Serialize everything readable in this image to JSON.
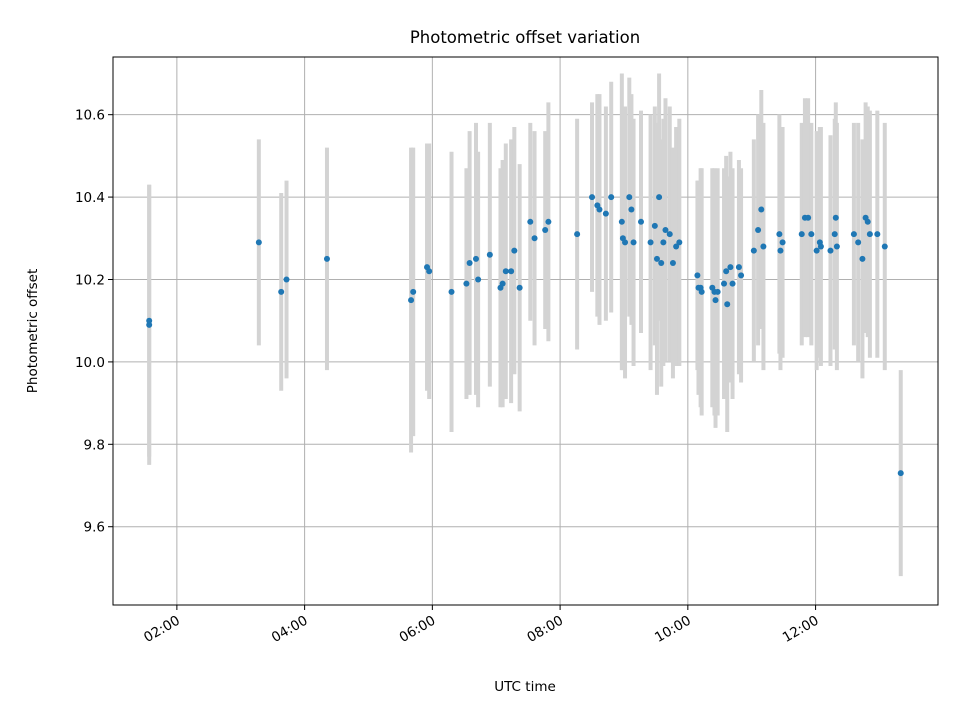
{
  "chart_data": {
    "type": "scatter",
    "title": "Photometric offset variation",
    "xlabel": "UTC time",
    "ylabel": "Photometric offset",
    "x_axis_type": "time",
    "xlim": [
      "01:00",
      "13:55"
    ],
    "ylim": [
      9.41,
      10.74
    ],
    "grid": true,
    "xticks": [
      "02:00",
      "04:00",
      "06:00",
      "08:00",
      "10:00",
      "12:00"
    ],
    "yticks": [
      "9.6",
      "9.8",
      "10.0",
      "10.2",
      "10.4",
      "10.6"
    ],
    "marker_color": "#1f77b4",
    "errorbar_color": "#d3d3d3",
    "series": [
      {
        "points": [
          {
            "x": "01:34",
            "y": 10.09,
            "err": 0.34
          },
          {
            "x": "01:34",
            "y": 10.1,
            "err": 0.33
          },
          {
            "x": "03:17",
            "y": 10.29,
            "err": 0.25
          },
          {
            "x": "03:38",
            "y": 10.17,
            "err": 0.24
          },
          {
            "x": "03:43",
            "y": 10.2,
            "err": 0.24
          },
          {
            "x": "04:21",
            "y": 10.25,
            "err": 0.27
          },
          {
            "x": "05:40",
            "y": 10.15,
            "err": 0.37
          },
          {
            "x": "05:42",
            "y": 10.17,
            "err": 0.35
          },
          {
            "x": "05:55",
            "y": 10.23,
            "err": 0.3
          },
          {
            "x": "05:57",
            "y": 10.22,
            "err": 0.31
          },
          {
            "x": "06:18",
            "y": 10.17,
            "err": 0.34
          },
          {
            "x": "06:32",
            "y": 10.19,
            "err": 0.28
          },
          {
            "x": "06:35",
            "y": 10.24,
            "err": 0.32
          },
          {
            "x": "06:41",
            "y": 10.25,
            "err": 0.33
          },
          {
            "x": "06:43",
            "y": 10.2,
            "err": 0.31
          },
          {
            "x": "06:54",
            "y": 10.26,
            "err": 0.32
          },
          {
            "x": "07:04",
            "y": 10.18,
            "err": 0.29
          },
          {
            "x": "07:06",
            "y": 10.19,
            "err": 0.3
          },
          {
            "x": "07:09",
            "y": 10.22,
            "err": 0.31
          },
          {
            "x": "07:14",
            "y": 10.22,
            "err": 0.32
          },
          {
            "x": "07:17",
            "y": 10.27,
            "err": 0.3
          },
          {
            "x": "07:22",
            "y": 10.18,
            "err": 0.3
          },
          {
            "x": "07:32",
            "y": 10.34,
            "err": 0.24
          },
          {
            "x": "07:36",
            "y": 10.3,
            "err": 0.26
          },
          {
            "x": "07:46",
            "y": 10.32,
            "err": 0.24
          },
          {
            "x": "07:49",
            "y": 10.34,
            "err": 0.29
          },
          {
            "x": "08:16",
            "y": 10.31,
            "err": 0.28
          },
          {
            "x": "08:30",
            "y": 10.4,
            "err": 0.23
          },
          {
            "x": "08:35",
            "y": 10.38,
            "err": 0.27
          },
          {
            "x": "08:37",
            "y": 10.37,
            "err": 0.28
          },
          {
            "x": "08:43",
            "y": 10.36,
            "err": 0.26
          },
          {
            "x": "08:48",
            "y": 10.4,
            "err": 0.28
          },
          {
            "x": "08:58",
            "y": 10.34,
            "err": 0.36
          },
          {
            "x": "08:59",
            "y": 10.3,
            "err": 0.32
          },
          {
            "x": "09:01",
            "y": 10.29,
            "err": 0.33
          },
          {
            "x": "09:05",
            "y": 10.4,
            "err": 0.29
          },
          {
            "x": "09:07",
            "y": 10.37,
            "err": 0.28
          },
          {
            "x": "09:09",
            "y": 10.29,
            "err": 0.3
          },
          {
            "x": "09:16",
            "y": 10.34,
            "err": 0.27
          },
          {
            "x": "09:25",
            "y": 10.29,
            "err": 0.31
          },
          {
            "x": "09:29",
            "y": 10.33,
            "err": 0.29
          },
          {
            "x": "09:31",
            "y": 10.25,
            "err": 0.33
          },
          {
            "x": "09:33",
            "y": 10.4,
            "err": 0.3
          },
          {
            "x": "09:35",
            "y": 10.24,
            "err": 0.3
          },
          {
            "x": "09:37",
            "y": 10.29,
            "err": 0.3
          },
          {
            "x": "09:39",
            "y": 10.32,
            "err": 0.32
          },
          {
            "x": "09:43",
            "y": 10.31,
            "err": 0.31
          },
          {
            "x": "09:46",
            "y": 10.24,
            "err": 0.28
          },
          {
            "x": "09:49",
            "y": 10.28,
            "err": 0.29
          },
          {
            "x": "09:52",
            "y": 10.29,
            "err": 0.3
          },
          {
            "x": "10:09",
            "y": 10.21,
            "err": 0.23
          },
          {
            "x": "10:10",
            "y": 10.18,
            "err": 0.26
          },
          {
            "x": "10:12",
            "y": 10.18,
            "err": 0.29
          },
          {
            "x": "10:13",
            "y": 10.17,
            "err": 0.3
          },
          {
            "x": "10:23",
            "y": 10.18,
            "err": 0.29
          },
          {
            "x": "10:25",
            "y": 10.17,
            "err": 0.3
          },
          {
            "x": "10:26",
            "y": 10.15,
            "err": 0.31
          },
          {
            "x": "10:28",
            "y": 10.17,
            "err": 0.3
          },
          {
            "x": "10:34",
            "y": 10.19,
            "err": 0.28
          },
          {
            "x": "10:36",
            "y": 10.22,
            "err": 0.28
          },
          {
            "x": "10:37",
            "y": 10.14,
            "err": 0.31
          },
          {
            "x": "10:40",
            "y": 10.23,
            "err": 0.28
          },
          {
            "x": "10:42",
            "y": 10.19,
            "err": 0.28
          },
          {
            "x": "10:48",
            "y": 10.23,
            "err": 0.26
          },
          {
            "x": "10:50",
            "y": 10.21,
            "err": 0.26
          },
          {
            "x": "11:02",
            "y": 10.27,
            "err": 0.27
          },
          {
            "x": "11:06",
            "y": 10.32,
            "err": 0.28
          },
          {
            "x": "11:09",
            "y": 10.37,
            "err": 0.29
          },
          {
            "x": "11:11",
            "y": 10.28,
            "err": 0.3
          },
          {
            "x": "11:26",
            "y": 10.31,
            "err": 0.29
          },
          {
            "x": "11:27",
            "y": 10.27,
            "err": 0.29
          },
          {
            "x": "11:29",
            "y": 10.29,
            "err": 0.28
          },
          {
            "x": "11:47",
            "y": 10.31,
            "err": 0.27
          },
          {
            "x": "11:50",
            "y": 10.35,
            "err": 0.29
          },
          {
            "x": "11:53",
            "y": 10.35,
            "err": 0.29
          },
          {
            "x": "11:56",
            "y": 10.31,
            "err": 0.27
          },
          {
            "x": "12:01",
            "y": 10.27,
            "err": 0.29
          },
          {
            "x": "12:04",
            "y": 10.29,
            "err": 0.28
          },
          {
            "x": "12:05",
            "y": 10.28,
            "err": 0.29
          },
          {
            "x": "12:14",
            "y": 10.27,
            "err": 0.28
          },
          {
            "x": "12:18",
            "y": 10.31,
            "err": 0.28
          },
          {
            "x": "12:19",
            "y": 10.35,
            "err": 0.28
          },
          {
            "x": "12:20",
            "y": 10.28,
            "err": 0.3
          },
          {
            "x": "12:36",
            "y": 10.31,
            "err": 0.27
          },
          {
            "x": "12:40",
            "y": 10.29,
            "err": 0.29
          },
          {
            "x": "12:44",
            "y": 10.25,
            "err": 0.29
          },
          {
            "x": "12:47",
            "y": 10.35,
            "err": 0.28
          },
          {
            "x": "12:49",
            "y": 10.34,
            "err": 0.28
          },
          {
            "x": "12:51",
            "y": 10.31,
            "err": 0.3
          },
          {
            "x": "12:58",
            "y": 10.31,
            "err": 0.3
          },
          {
            "x": "13:05",
            "y": 10.28,
            "err": 0.3
          },
          {
            "x": "13:20",
            "y": 9.73,
            "err": 0.25
          }
        ]
      }
    ]
  }
}
